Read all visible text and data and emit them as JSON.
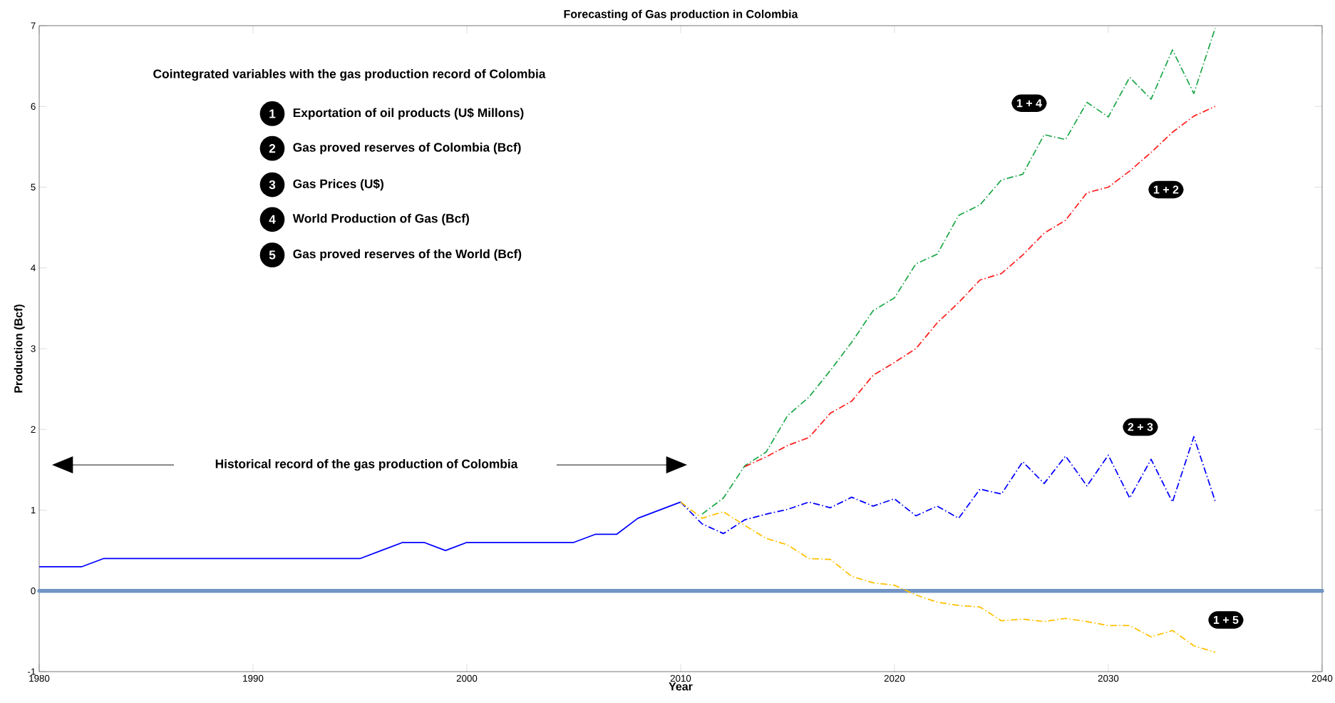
{
  "chart_data": {
    "type": "line",
    "title": "Forecasting of Gas production in Colombia",
    "xlabel": "Year",
    "ylabel": "Production (Bcf)",
    "xlim": [
      1980,
      2040
    ],
    "xticks": [
      1980,
      1990,
      2000,
      2010,
      2020,
      2030,
      2040
    ],
    "ylim": [
      -1,
      7
    ],
    "yticks": [
      -1,
      0,
      1,
      2,
      3,
      4,
      5,
      6,
      7
    ],
    "series": [
      {
        "color": "#0000ff",
        "line_style": "solid",
        "x": [
          1980,
          1982,
          1983,
          1995,
          1996,
          1997,
          1998,
          1999,
          2000,
          2005,
          2006,
          2007,
          2008,
          2010
        ],
        "values": [
          0.3,
          0.3,
          0.4,
          0.4,
          0.5,
          0.6,
          0.6,
          0.5,
          0.6,
          0.6,
          0.7,
          0.7,
          0.9,
          1.1
        ]
      },
      {
        "name": "1 + 4",
        "color": "#1fa84a",
        "line_style": "dashed",
        "x": [
          2011,
          2012,
          2013,
          2014,
          2015,
          2016,
          2017,
          2018,
          2019,
          2020,
          2021,
          2022,
          2023,
          2024,
          2025,
          2026,
          2027,
          2028,
          2029,
          2030,
          2031,
          2032,
          2033,
          2034,
          2035
        ],
        "values": [
          0.95,
          1.15,
          1.55,
          1.72,
          2.17,
          2.4,
          2.73,
          3.08,
          3.47,
          3.63,
          4.05,
          4.17,
          4.65,
          4.78,
          5.09,
          5.16,
          5.65,
          5.59,
          6.05,
          5.87,
          6.36,
          6.09,
          6.7,
          6.16,
          6.97
        ]
      },
      {
        "name": "1 + 2",
        "color": "#ff2020",
        "line_style": "dashed",
        "x": [
          2013,
          2014,
          2015,
          2016,
          2017,
          2018,
          2019,
          2020,
          2021,
          2022,
          2023,
          2024,
          2025,
          2026,
          2027,
          2028,
          2029,
          2030,
          2031,
          2032,
          2033,
          2034,
          2035
        ],
        "values": [
          1.54,
          1.66,
          1.8,
          1.9,
          2.2,
          2.35,
          2.67,
          2.83,
          3.0,
          3.32,
          3.57,
          3.85,
          3.93,
          4.16,
          4.43,
          4.59,
          4.93,
          5.0,
          5.2,
          5.43,
          5.68,
          5.88,
          6.0
        ]
      },
      {
        "name": "2 + 3",
        "color": "#0000ff",
        "line_style": "dashed",
        "x": [
          2010,
          2011,
          2012,
          2013,
          2014,
          2015,
          2016,
          2017,
          2018,
          2019,
          2020,
          2021,
          2022,
          2023,
          2024,
          2025,
          2026,
          2027,
          2028,
          2029,
          2030,
          2031,
          2032,
          2033,
          2034,
          2035
        ],
        "values": [
          1.1,
          0.83,
          0.71,
          0.88,
          0.95,
          1.01,
          1.1,
          1.03,
          1.16,
          1.05,
          1.14,
          0.93,
          1.05,
          0.9,
          1.26,
          1.2,
          1.6,
          1.33,
          1.67,
          1.3,
          1.68,
          1.15,
          1.63,
          1.1,
          1.91,
          1.11
        ]
      },
      {
        "name": "1 + 5",
        "color": "#ffc000",
        "line_style": "dashed",
        "x": [
          2010,
          2011,
          2012,
          2013,
          2014,
          2015,
          2016,
          2017,
          2018,
          2019,
          2020,
          2021,
          2022,
          2023,
          2024,
          2025,
          2026,
          2027,
          2028,
          2029,
          2030,
          2031,
          2032,
          2033,
          2034,
          2035
        ],
        "values": [
          1.1,
          0.9,
          0.98,
          0.81,
          0.65,
          0.57,
          0.4,
          0.39,
          0.18,
          0.1,
          0.07,
          -0.05,
          -0.14,
          -0.18,
          -0.2,
          -0.37,
          -0.35,
          -0.38,
          -0.34,
          -0.38,
          -0.43,
          -0.43,
          -0.57,
          -0.49,
          -0.68,
          -0.76
        ]
      }
    ],
    "ref_lines": [
      {
        "axis": "y",
        "value": 0,
        "color": "#7094c4"
      }
    ],
    "annotations": [
      "Cointegrated variables with the gas production record of Colombia",
      "1",
      "Exportation of oil products (U$ Millons)",
      "2",
      "Gas proved reserves of Colombia (Bcf)",
      "3",
      "Gas Prices (U$)",
      "4",
      "World Production of Gas (Bcf)",
      "5",
      "Gas proved reserves of the World (Bcf)",
      "Historical record of the gas production of Colombia"
    ],
    "legend": false
  }
}
